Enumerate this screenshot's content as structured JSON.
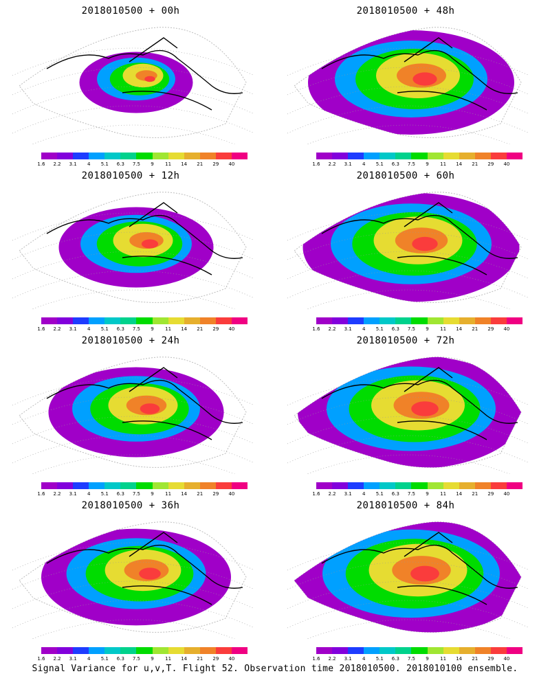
{
  "caption": "Signal Variance for u,v,T. Flight 52. Observation time 2018010500. 2018010100 ensemble.",
  "panels": [
    {
      "title": "2018010500 + 00h",
      "intensity": 0.35
    },
    {
      "title": "2018010500 + 48h",
      "intensity": 0.8
    },
    {
      "title": "2018010500 + 12h",
      "intensity": 0.55
    },
    {
      "title": "2018010500 + 60h",
      "intensity": 0.85
    },
    {
      "title": "2018010500 + 24h",
      "intensity": 0.65
    },
    {
      "title": "2018010500 + 72h",
      "intensity": 0.9
    },
    {
      "title": "2018010500 + 36h",
      "intensity": 0.72
    },
    {
      "title": "2018010500 + 84h",
      "intensity": 0.95
    }
  ],
  "colorbar": {
    "ticks": [
      "1.6",
      "2.2",
      "3.1",
      "4",
      "5.1",
      "6.3",
      "7.5",
      "9",
      "11",
      "14",
      "21",
      "29",
      "40"
    ],
    "colors": [
      "#a000c8",
      "#8200dc",
      "#1e3cff",
      "#00a0ff",
      "#00c8c8",
      "#00d28c",
      "#00dc00",
      "#a0e632",
      "#e6dc32",
      "#e6af2d",
      "#f08228",
      "#fa3c3c",
      "#f00082"
    ]
  }
}
